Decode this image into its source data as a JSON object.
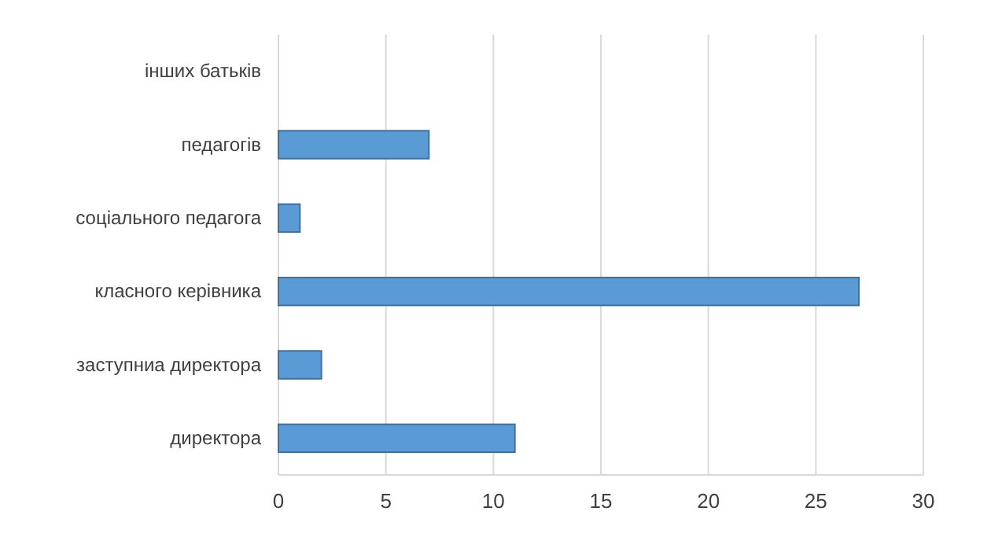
{
  "chart_data": {
    "type": "bar",
    "orientation": "horizontal",
    "categories": [
      "інших батьків",
      "педагогів",
      "соціального педагога",
      "класного керівника",
      "заступниа директора",
      "директора"
    ],
    "values": [
      0,
      7,
      1,
      27,
      2,
      11
    ],
    "color": "#5b9bd5",
    "xlim": [
      0,
      30
    ],
    "xticks": [
      0,
      5,
      10,
      15,
      20,
      25,
      30
    ],
    "grid": "x"
  }
}
